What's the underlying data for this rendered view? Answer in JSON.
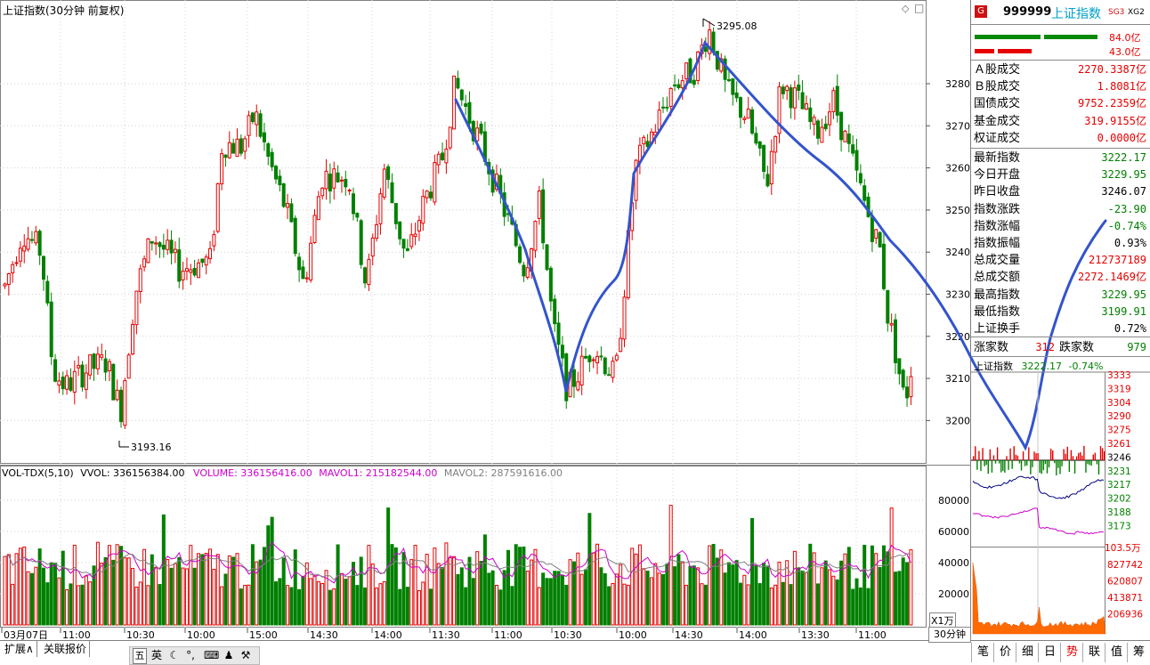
{
  "window": {
    "title": "上证指数(30分钟 前复权)"
  },
  "main_chart": {
    "y_ticks": [
      "3280",
      "3270",
      "3260",
      "3250",
      "3240",
      "3230",
      "3220",
      "3210",
      "3200"
    ],
    "high_label": "3295.08",
    "low_label": "3193.16",
    "x_ticks": [
      "03月07日",
      "11:00",
      "10:30",
      "10:00",
      "15:00",
      "14:30",
      "14:00",
      "11:30",
      "11:00",
      "10:30",
      "10:00",
      "14:30",
      "14:00",
      "13:30",
      "11:00"
    ],
    "timeframe_label": "30分钟",
    "colors": {
      "up": "#e60000",
      "down": "#008000",
      "annotation": "#3354cc",
      "mavol1": "#cc00cc",
      "mavol2": "#808080"
    }
  },
  "volume_panel": {
    "indicator_name": "VOL-TDX(5,10)",
    "vvol": "VVOL: 336156384.00",
    "volume": "VOLUME: 336156416.00",
    "mavol1": "MAVOL1: 215182544.00",
    "mavol2": "MAVOL2: 287591616.00",
    "y_ticks": [
      "80000",
      "60000",
      "40000",
      "20000"
    ],
    "unit": "X1万"
  },
  "quote_panel": {
    "code": "999999",
    "name": "上证指数",
    "tag1": "SG3",
    "tag2": "XG2",
    "badge": "G",
    "bar1_value": "84.0亿",
    "bar2_value": "43.0亿",
    "rows": [
      {
        "label": "Ａ股成交",
        "value": "2270.3387亿",
        "color": "#e60000"
      },
      {
        "label": "Ｂ股成交",
        "value": "1.8081亿",
        "color": "#e60000"
      },
      {
        "label": "国债成交",
        "value": "9752.2359亿",
        "color": "#e60000"
      },
      {
        "label": "基金成交",
        "value": "319.9155亿",
        "color": "#e60000"
      },
      {
        "label": "权证成交",
        "value": "0.0000亿",
        "color": "#e60000"
      }
    ],
    "stats": [
      {
        "label": "最新指数",
        "value": "3222.17",
        "color": "#008000"
      },
      {
        "label": "今日开盘",
        "value": "3229.95",
        "color": "#008000"
      },
      {
        "label": "昨日收盘",
        "value": "3246.07",
        "color": "#000000"
      },
      {
        "label": "指数涨跌",
        "value": "-23.90",
        "color": "#008000"
      },
      {
        "label": "指数涨幅",
        "value": "-0.74%",
        "color": "#008000"
      },
      {
        "label": "指数振幅",
        "value": "0.93%",
        "color": "#000000"
      },
      {
        "label": "总成交量",
        "value": "212737189",
        "color": "#e60000"
      },
      {
        "label": "总成交额",
        "value": "2272.1469亿",
        "color": "#e60000"
      },
      {
        "label": "最高指数",
        "value": "3229.95",
        "color": "#008000"
      },
      {
        "label": "最低指数",
        "value": "3199.91",
        "color": "#008000"
      },
      {
        "label": "上证换手",
        "value": "0.72%",
        "color": "#000000"
      }
    ],
    "up_label": "涨家数",
    "up_value": "312",
    "down_label": "跌家数",
    "down_value": "979"
  },
  "mini_chart": {
    "title": "上证指数",
    "value": "3222.17",
    "change": "-0.74%",
    "price_ticks": [
      "3333",
      "3319",
      "3304",
      "3290",
      "3275",
      "3261",
      "3246",
      "3231",
      "3217",
      "3202",
      "3188",
      "3173"
    ],
    "vol_unit": "103.5万",
    "vol_ticks": [
      "827742",
      "620807",
      "413871",
      "206936"
    ]
  },
  "bottom_tabs": [
    "扩展∧",
    "关联报价"
  ],
  "right_tabs": [
    "笔",
    "价",
    "细",
    "日",
    "势",
    "联",
    "值",
    "筹"
  ],
  "ime_bar": [
    "五",
    "英"
  ]
}
